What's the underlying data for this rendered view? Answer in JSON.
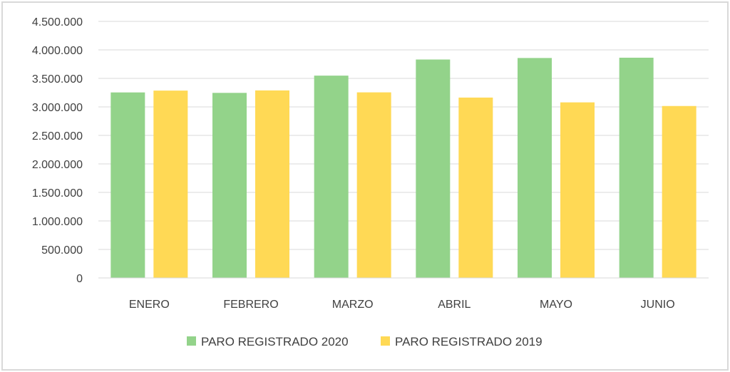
{
  "chart_data": {
    "type": "bar",
    "title": "",
    "xlabel": "",
    "ylabel": "",
    "categories": [
      "ENERO",
      "FEBRERO",
      "MARZO",
      "ABRIL",
      "MAYO",
      "JUNIO"
    ],
    "series": [
      {
        "name": "PARO REGISTRADO 2020",
        "color": "#93d38a",
        "values": [
          3253853,
          3246047,
          3548312,
          3831203,
          3857776,
          3862883
        ]
      },
      {
        "name": "PARO REGISTRADO 2019",
        "color": "#ffd955",
        "values": [
          3285761,
          3289040,
          3255084,
          3163566,
          3079491,
          3015686
        ]
      }
    ],
    "ylim": [
      0,
      4500000
    ],
    "yticks": [
      0,
      500000,
      1000000,
      1500000,
      2000000,
      2500000,
      3000000,
      3500000,
      4000000,
      4500000
    ],
    "ytick_labels": [
      "0",
      "500.000",
      "1.000.000",
      "1.500.000",
      "2.000.000",
      "2.500.000",
      "3.000.000",
      "3.500.000",
      "4.000.000",
      "4.500.000"
    ],
    "grid": true,
    "legend_position": "bottom"
  }
}
